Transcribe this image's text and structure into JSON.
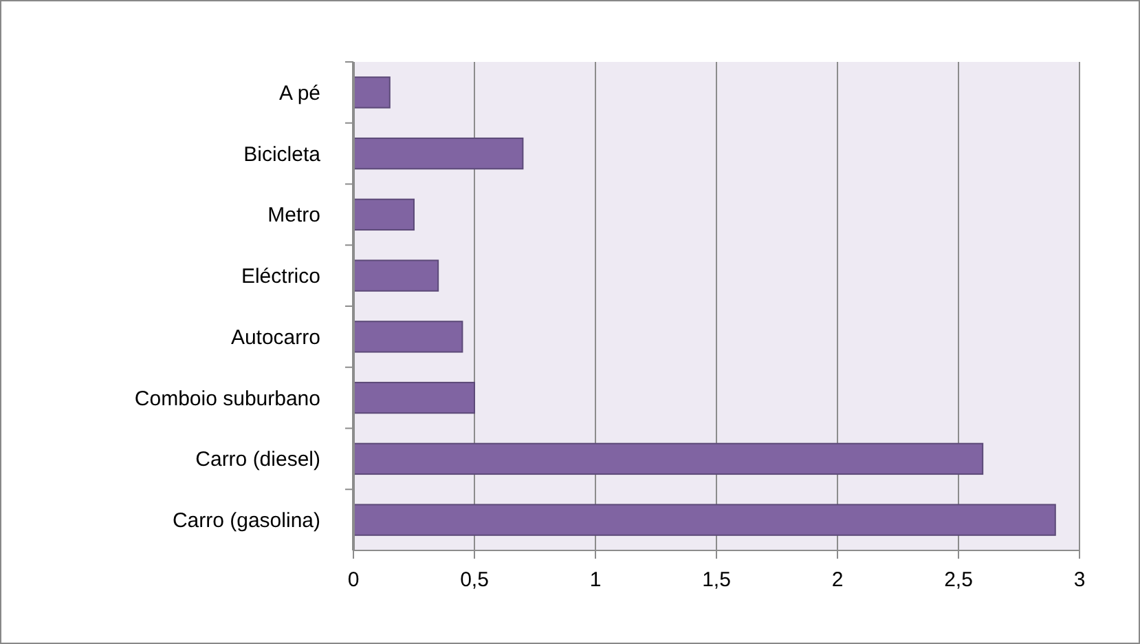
{
  "chart_data": {
    "type": "bar",
    "orientation": "horizontal",
    "categories": [
      "A pé",
      "Bicicleta",
      "Metro",
      "Eléctrico",
      "Autocarro",
      "Comboio suburbano",
      "Carro (diesel)",
      "Carro (gasolina)"
    ],
    "values": [
      0.15,
      0.7,
      0.25,
      0.35,
      0.45,
      0.5,
      2.6,
      2.9
    ],
    "color": "#8064a2",
    "xlim": [
      0,
      3
    ],
    "xticks": [
      0,
      {
        "value": 0.5,
        "label": "0,5"
      },
      1,
      {
        "value": 1.5,
        "label": "1,5"
      },
      2,
      {
        "value": 2.5,
        "label": "2,5"
      },
      3
    ],
    "grid": "x"
  }
}
